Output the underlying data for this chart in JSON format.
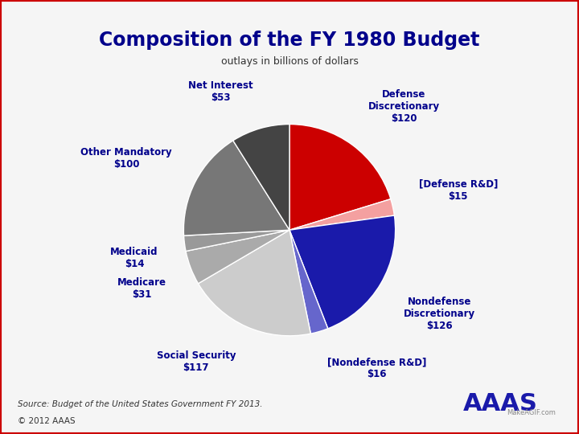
{
  "title": "Composition of the FY 1980 Budget",
  "subtitle": "outlays in billions of dollars",
  "slices": [
    {
      "label": "Defense\nDiscretionary\n$120",
      "value": 120,
      "color": "#cc0000",
      "label_pos": "right"
    },
    {
      "label": "[Defense R&D]\n$15",
      "value": 15,
      "color": "#f4a0a0",
      "label_pos": "right"
    },
    {
      "label": "Nondefense\nDiscretionary\n$126",
      "value": 126,
      "color": "#1a1aaa",
      "label_pos": "right"
    },
    {
      "label": "[Nondefense R&D]\n$16",
      "value": 16,
      "color": "#6666cc",
      "label_pos": "bottom"
    },
    {
      "label": "Social Security\n$117",
      "value": 117,
      "color": "#cccccc",
      "label_pos": "bottom"
    },
    {
      "label": "Medicare\n$31",
      "value": 31,
      "color": "#aaaaaa",
      "label_pos": "left"
    },
    {
      "label": "Medicaid\n$14",
      "value": 14,
      "color": "#999999",
      "label_pos": "left"
    },
    {
      "label": "Other Mandatory\n$100",
      "value": 100,
      "color": "#777777",
      "label_pos": "left"
    },
    {
      "label": "Net Interest\n$53",
      "value": 53,
      "color": "#444444",
      "label_pos": "left"
    }
  ],
  "source_text": "Source: Budget of the United States Government FY 2013.",
  "copyright_text": "© 2012 AAAS",
  "title_color": "#00008B",
  "label_color": "#00008B",
  "bg_color": "#f5f5f5",
  "border_color": "#cc0000"
}
